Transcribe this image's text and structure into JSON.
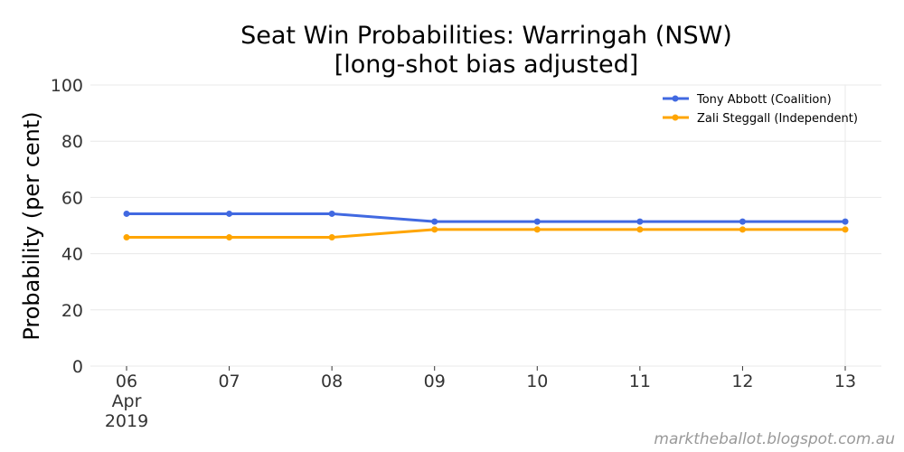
{
  "chart_data": {
    "type": "line",
    "title": [
      "Seat Win Probabilities: Warringah (NSW)",
      "[long-shot bias adjusted]"
    ],
    "xlabel": "",
    "ylabel": "Probability (per cent)",
    "ylim": [
      0,
      100
    ],
    "yticks": [
      0,
      20,
      40,
      60,
      80,
      100
    ],
    "x": [
      "2019-04-06",
      "2019-04-07",
      "2019-04-08",
      "2019-04-09",
      "2019-04-10",
      "2019-04-11",
      "2019-04-12",
      "2019-04-13"
    ],
    "xtick_labels": [
      [
        "06",
        "Apr",
        "2019"
      ],
      [
        "07"
      ],
      [
        "08"
      ],
      [
        "09"
      ],
      [
        "10"
      ],
      [
        "11"
      ],
      [
        "12"
      ],
      [
        "13"
      ]
    ],
    "series": [
      {
        "name": "Tony Abbott (Coalition)",
        "color": "#4169E1",
        "values": [
          54.2,
          54.2,
          54.2,
          51.4,
          51.4,
          51.4,
          51.4,
          51.4
        ]
      },
      {
        "name": "Zali Steggall (Independent)",
        "color": "#FFA500",
        "values": [
          45.8,
          45.8,
          45.8,
          48.6,
          48.6,
          48.6,
          48.6,
          48.6
        ]
      }
    ],
    "grid": true,
    "legend_position": "top-right"
  },
  "watermark": "marktheballot.blogspot.com.au"
}
